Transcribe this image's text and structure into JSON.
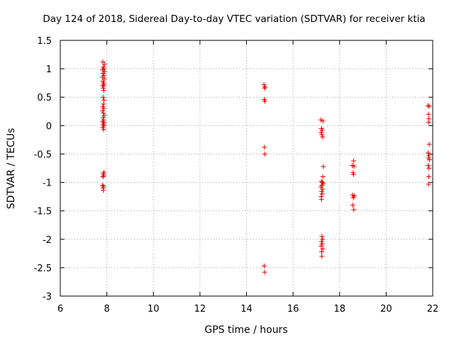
{
  "chart_data": {
    "type": "scatter",
    "title": "Day 124 of 2018, Sidereal Day-to-day VTEC variation (SDTVAR) for receiver ktia",
    "xlabel": "GPS time / hours",
    "ylabel": "SDTVAR / TECUs",
    "xlim": [
      6,
      22
    ],
    "ylim": [
      -3,
      1.5
    ],
    "xticks": [
      6,
      8,
      10,
      12,
      14,
      16,
      18,
      20,
      22
    ],
    "yticks": [
      -3,
      -2.5,
      -2,
      -1.5,
      -1,
      -0.5,
      0,
      0.5,
      1,
      1.5
    ],
    "xtick_labels": [
      "6",
      "8",
      "10",
      "12",
      "14",
      "16",
      "18",
      "20",
      "22"
    ],
    "ytick_labels": [
      "-3",
      "-2.5",
      "-2",
      "-1.5",
      "-1",
      "-0.5",
      "0",
      "0.5",
      "1",
      "1.5"
    ],
    "grid": true,
    "marker": "+",
    "color": "#e00000",
    "series": [
      {
        "name": "SDTVAR",
        "points": [
          [
            7.83,
            1.12
          ],
          [
            7.9,
            1.08
          ],
          [
            7.85,
            1.03
          ],
          [
            7.88,
            1.0
          ],
          [
            7.82,
            0.98
          ],
          [
            7.9,
            0.95
          ],
          [
            7.84,
            0.92
          ],
          [
            7.87,
            0.88
          ],
          [
            7.81,
            0.85
          ],
          [
            7.89,
            0.82
          ],
          [
            7.83,
            0.78
          ],
          [
            7.86,
            0.75
          ],
          [
            7.88,
            0.72
          ],
          [
            7.82,
            0.7
          ],
          [
            7.85,
            0.66
          ],
          [
            7.87,
            0.62
          ],
          [
            7.84,
            0.5
          ],
          [
            7.88,
            0.45
          ],
          [
            7.86,
            0.38
          ],
          [
            7.83,
            0.33
          ],
          [
            7.87,
            0.3
          ],
          [
            7.82,
            0.26
          ],
          [
            7.85,
            0.22
          ],
          [
            7.89,
            0.18
          ],
          [
            7.84,
            0.14
          ],
          [
            7.86,
            0.1
          ],
          [
            7.82,
            0.07
          ],
          [
            7.88,
            0.05
          ],
          [
            7.85,
            0.02
          ],
          [
            7.87,
            0.0
          ],
          [
            7.83,
            -0.03
          ],
          [
            7.86,
            -0.07
          ],
          [
            7.88,
            -0.82
          ],
          [
            7.85,
            -0.85
          ],
          [
            7.87,
            -0.88
          ],
          [
            7.83,
            -0.9
          ],
          [
            7.82,
            -1.05
          ],
          [
            7.86,
            -1.07
          ],
          [
            7.84,
            -1.1
          ],
          [
            7.85,
            -1.14
          ],
          [
            14.75,
            0.72
          ],
          [
            14.8,
            0.68
          ],
          [
            14.78,
            0.66
          ],
          [
            14.76,
            0.46
          ],
          [
            14.79,
            0.43
          ],
          [
            14.77,
            -0.38
          ],
          [
            14.79,
            -0.5
          ],
          [
            14.76,
            -2.47
          ],
          [
            14.78,
            -2.58
          ],
          [
            17.2,
            0.1
          ],
          [
            17.28,
            0.08
          ],
          [
            17.22,
            -0.05
          ],
          [
            17.25,
            -0.08
          ],
          [
            17.21,
            -0.12
          ],
          [
            17.24,
            -0.16
          ],
          [
            17.27,
            -0.2
          ],
          [
            17.3,
            -0.72
          ],
          [
            17.28,
            -0.9
          ],
          [
            17.22,
            -0.98
          ],
          [
            17.26,
            -1.0
          ],
          [
            17.3,
            -1.02
          ],
          [
            17.24,
            -1.05
          ],
          [
            17.2,
            -1.08
          ],
          [
            17.27,
            -1.12
          ],
          [
            17.23,
            -1.16
          ],
          [
            17.25,
            -1.2
          ],
          [
            17.21,
            -1.25
          ],
          [
            17.22,
            -1.3
          ],
          [
            17.24,
            -1.95
          ],
          [
            17.27,
            -2.0
          ],
          [
            17.22,
            -2.04
          ],
          [
            17.25,
            -2.08
          ],
          [
            17.21,
            -2.12
          ],
          [
            17.28,
            -2.17
          ],
          [
            17.23,
            -2.22
          ],
          [
            17.24,
            -2.3
          ],
          [
            18.6,
            -0.62
          ],
          [
            18.55,
            -0.7
          ],
          [
            18.62,
            -0.72
          ],
          [
            18.58,
            -0.83
          ],
          [
            18.6,
            -0.86
          ],
          [
            18.56,
            -1.22
          ],
          [
            18.63,
            -1.24
          ],
          [
            18.59,
            -1.27
          ],
          [
            18.57,
            -1.4
          ],
          [
            18.61,
            -1.48
          ],
          [
            21.8,
            0.35
          ],
          [
            21.85,
            0.34
          ],
          [
            21.82,
            0.2
          ],
          [
            21.84,
            0.12
          ],
          [
            21.83,
            0.06
          ],
          [
            21.85,
            -0.33
          ],
          [
            21.8,
            -0.48
          ],
          [
            21.84,
            -0.53
          ],
          [
            21.82,
            -0.57
          ],
          [
            21.86,
            -0.6
          ],
          [
            21.81,
            -0.7
          ],
          [
            21.84,
            -0.75
          ],
          [
            21.83,
            -0.9
          ],
          [
            21.82,
            -1.03
          ]
        ]
      }
    ]
  }
}
